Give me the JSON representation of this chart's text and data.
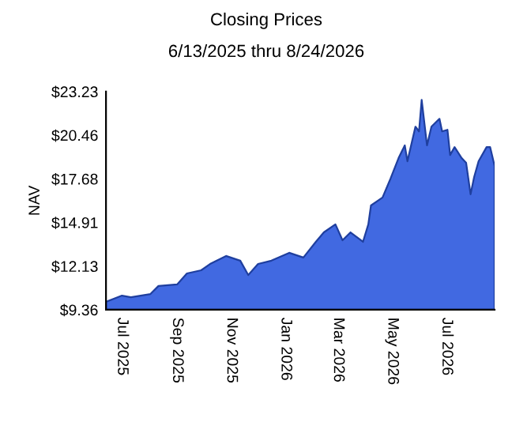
{
  "chart_data": {
    "type": "area",
    "title": "Closing Prices",
    "subtitle": "6/13/2025 thru 8/24/2026",
    "ylabel": "NAV",
    "x": [
      "2025-06-13",
      "2025-07-01",
      "2025-07-11",
      "2025-08-02",
      "2025-08-11",
      "2025-09-01",
      "2025-09-12",
      "2025-09-28",
      "2025-10-08",
      "2025-10-26",
      "2025-11-11",
      "2025-11-20",
      "2025-12-01",
      "2025-12-16",
      "2026-01-05",
      "2026-01-21",
      "2026-02-04",
      "2026-02-13",
      "2026-02-26",
      "2026-03-06",
      "2026-03-15",
      "2026-03-29",
      "2026-04-04",
      "2026-04-07",
      "2026-04-20",
      "2026-04-29",
      "2026-05-08",
      "2026-05-15",
      "2026-05-18",
      "2026-05-27",
      "2026-05-31",
      "2026-06-03",
      "2026-06-09",
      "2026-06-14",
      "2026-06-23",
      "2026-06-26",
      "2026-07-02",
      "2026-07-05",
      "2026-07-10",
      "2026-07-18",
      "2026-07-23",
      "2026-07-28",
      "2026-08-01",
      "2026-08-06",
      "2026-08-15",
      "2026-08-19",
      "2026-08-24"
    ],
    "series": [
      {
        "color": "#4169e1",
        "values": [
          9.86,
          10.26,
          10.16,
          10.36,
          10.87,
          10.97,
          11.67,
          11.87,
          12.27,
          12.78,
          12.48,
          11.57,
          12.27,
          12.48,
          12.98,
          12.68,
          13.68,
          14.28,
          14.79,
          13.78,
          14.28,
          13.68,
          14.79,
          15.99,
          16.5,
          17.7,
          19.0,
          19.81,
          18.8,
          21.0,
          20.7,
          22.7,
          19.81,
          21.0,
          21.5,
          20.7,
          20.8,
          19.2,
          19.7,
          19.0,
          18.7,
          16.7,
          17.8,
          18.8,
          19.7,
          19.7,
          18.5
        ]
      }
    ],
    "xlim": [
      "2025-06-13",
      "2026-08-24"
    ],
    "xticks": [
      {
        "value": "2025-07-01",
        "label": "Jul 2025"
      },
      {
        "value": "2025-09-01",
        "label": "Sep 2025"
      },
      {
        "value": "2025-11-01",
        "label": "Nov 2025"
      },
      {
        "value": "2026-01-01",
        "label": "Jan 2026"
      },
      {
        "value": "2026-03-01",
        "label": "Mar 2026"
      },
      {
        "value": "2026-05-01",
        "label": "May 2026"
      },
      {
        "value": "2026-07-01",
        "label": "Jul 2026"
      }
    ],
    "ylim": [
      9.36,
      23.23
    ],
    "yticks": [
      {
        "value": 9.36,
        "label": "$9.36"
      },
      {
        "value": 12.13,
        "label": "$12.13"
      },
      {
        "value": 14.91,
        "label": "$14.91"
      },
      {
        "value": 17.68,
        "label": "$17.68"
      },
      {
        "value": 20.46,
        "label": "$20.46"
      },
      {
        "value": 23.23,
        "label": "$23.23"
      }
    ],
    "grid": false,
    "legend": false
  }
}
